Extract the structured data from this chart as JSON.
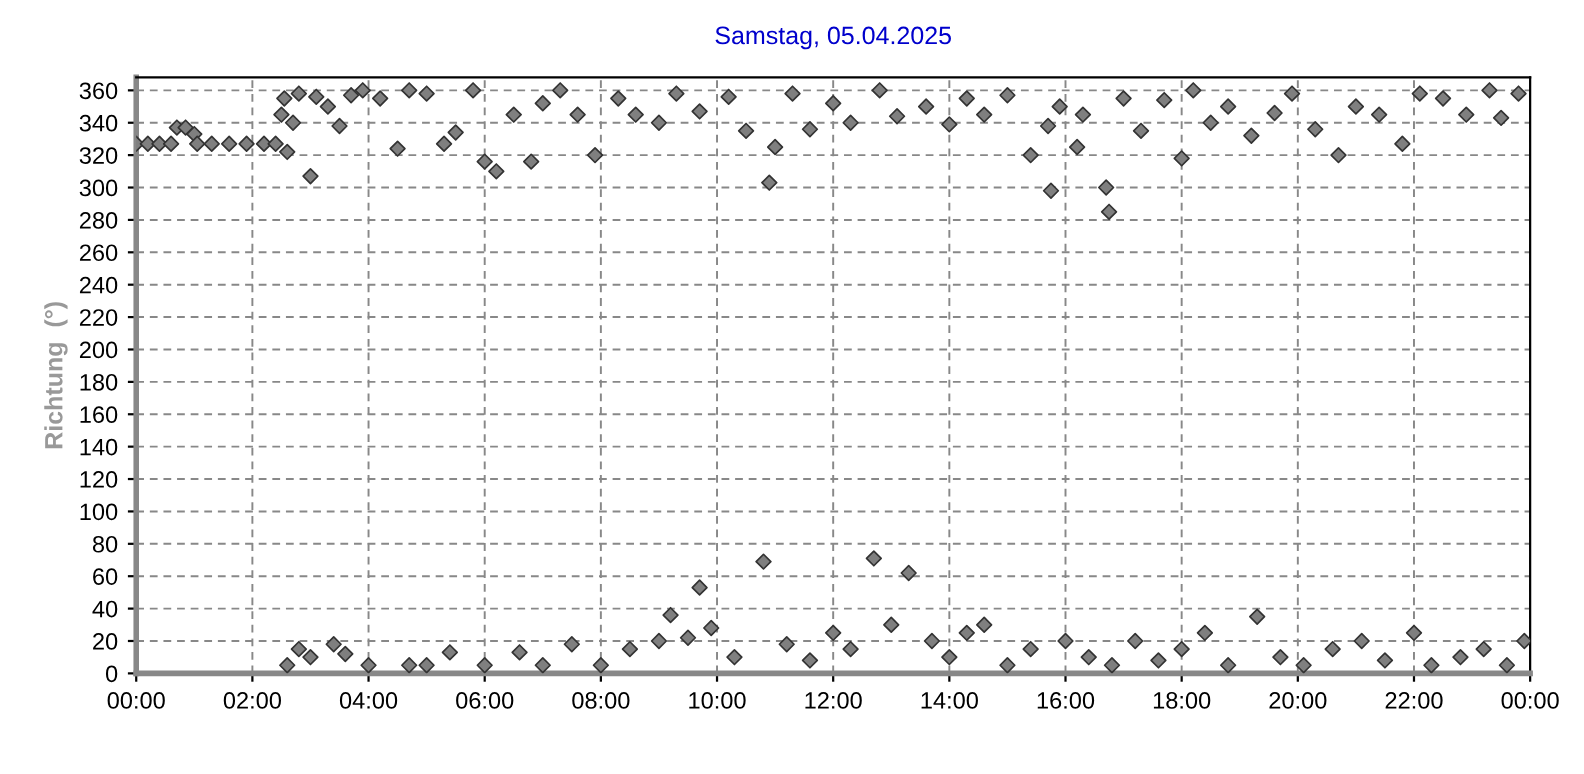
{
  "chart_data": {
    "type": "scatter",
    "title": "Samstag, 05.04.2025",
    "ylabel": "Richtung  (°)",
    "marker": "diamond",
    "grid": true,
    "series": [
      {
        "color": "#7f7f7f",
        "x": [
          0.0,
          0.2,
          0.4,
          0.6,
          0.7,
          0.85,
          1.0,
          1.05,
          1.3,
          1.6,
          1.9,
          2.2,
          2.4,
          2.5,
          2.55,
          2.6,
          2.7,
          2.8,
          3.0,
          3.1,
          3.3,
          3.5,
          3.7,
          3.9,
          4.2,
          4.5,
          4.7,
          5.0,
          5.3,
          5.5,
          5.8,
          6.0,
          6.2,
          6.5,
          6.8,
          7.0,
          7.3,
          7.6,
          7.9,
          8.3,
          8.6,
          9.0,
          9.3,
          9.7,
          10.2,
          10.5,
          10.9,
          11.0,
          11.3,
          11.6,
          12.0,
          12.3,
          12.8,
          13.1,
          13.6,
          14.0,
          14.3,
          14.6,
          15.0,
          15.4,
          15.7,
          15.75,
          15.9,
          16.2,
          16.3,
          16.7,
          16.75,
          17.0,
          17.3,
          17.7,
          18.0,
          18.2,
          18.5,
          18.8,
          19.2,
          19.6,
          19.9,
          20.3,
          20.7,
          21.0,
          21.4,
          21.8,
          22.1,
          22.5,
          22.9,
          23.3,
          23.5,
          23.8,
          2.6,
          2.8,
          3.0,
          3.4,
          3.6,
          4.0,
          4.7,
          5.0,
          5.4,
          6.0,
          6.6,
          7.0,
          7.5,
          8.0,
          8.5,
          9.0,
          9.2,
          9.5,
          9.7,
          9.9,
          10.3,
          10.8,
          11.2,
          11.6,
          12.0,
          12.3,
          12.7,
          13.0,
          13.3,
          13.7,
          14.0,
          14.3,
          14.6,
          15.0,
          15.4,
          16.0,
          16.4,
          16.8,
          17.2,
          17.6,
          18.0,
          18.4,
          18.8,
          19.3,
          19.7,
          20.1,
          20.6,
          21.1,
          21.5,
          22.0,
          22.3,
          22.8,
          23.2,
          23.6,
          23.9
        ],
        "values": [
          327,
          327,
          327,
          327,
          337,
          337,
          333,
          327,
          327,
          327,
          327,
          327,
          327,
          345,
          355,
          322,
          340,
          358,
          307,
          356,
          350,
          338,
          357,
          360,
          355,
          324,
          360,
          358,
          327,
          334,
          360,
          316,
          310,
          345,
          316,
          352,
          360,
          345,
          320,
          355,
          345,
          340,
          358,
          347,
          356,
          335,
          303,
          325,
          358,
          336,
          352,
          340,
          360,
          344,
          350,
          339,
          355,
          345,
          357,
          320,
          338,
          298,
          350,
          325,
          345,
          300,
          285,
          355,
          335,
          354,
          318,
          360,
          340,
          350,
          332,
          346,
          358,
          336,
          320,
          350,
          345,
          327,
          358,
          355,
          345,
          360,
          343,
          358,
          5,
          15,
          10,
          18,
          12,
          5,
          5,
          5,
          13,
          5,
          13,
          5,
          18,
          5,
          15,
          20,
          36,
          22,
          53,
          28,
          10,
          69,
          18,
          8,
          25,
          15,
          71,
          30,
          62,
          20,
          10,
          25,
          30,
          5,
          15,
          20,
          10,
          5,
          20,
          8,
          15,
          25,
          5,
          35,
          10,
          5,
          15,
          20,
          8,
          25,
          5,
          10,
          15,
          5,
          20
        ]
      }
    ],
    "xlim": [
      0,
      24
    ],
    "xticks": [
      {
        "value": 0,
        "label": "00:00"
      },
      {
        "value": 2,
        "label": "02:00"
      },
      {
        "value": 4,
        "label": "04:00"
      },
      {
        "value": 6,
        "label": "06:00"
      },
      {
        "value": 8,
        "label": "08:00"
      },
      {
        "value": 10,
        "label": "10:00"
      },
      {
        "value": 12,
        "label": "12:00"
      },
      {
        "value": 14,
        "label": "14:00"
      },
      {
        "value": 16,
        "label": "16:00"
      },
      {
        "value": 18,
        "label": "18:00"
      },
      {
        "value": 20,
        "label": "20:00"
      },
      {
        "value": 22,
        "label": "22:00"
      },
      {
        "value": 24,
        "label": "00:00"
      }
    ],
    "ylim": [
      0,
      368
    ],
    "yticks": [
      0,
      20,
      40,
      60,
      80,
      100,
      120,
      140,
      160,
      180,
      200,
      220,
      240,
      260,
      280,
      300,
      320,
      340,
      360
    ]
  }
}
